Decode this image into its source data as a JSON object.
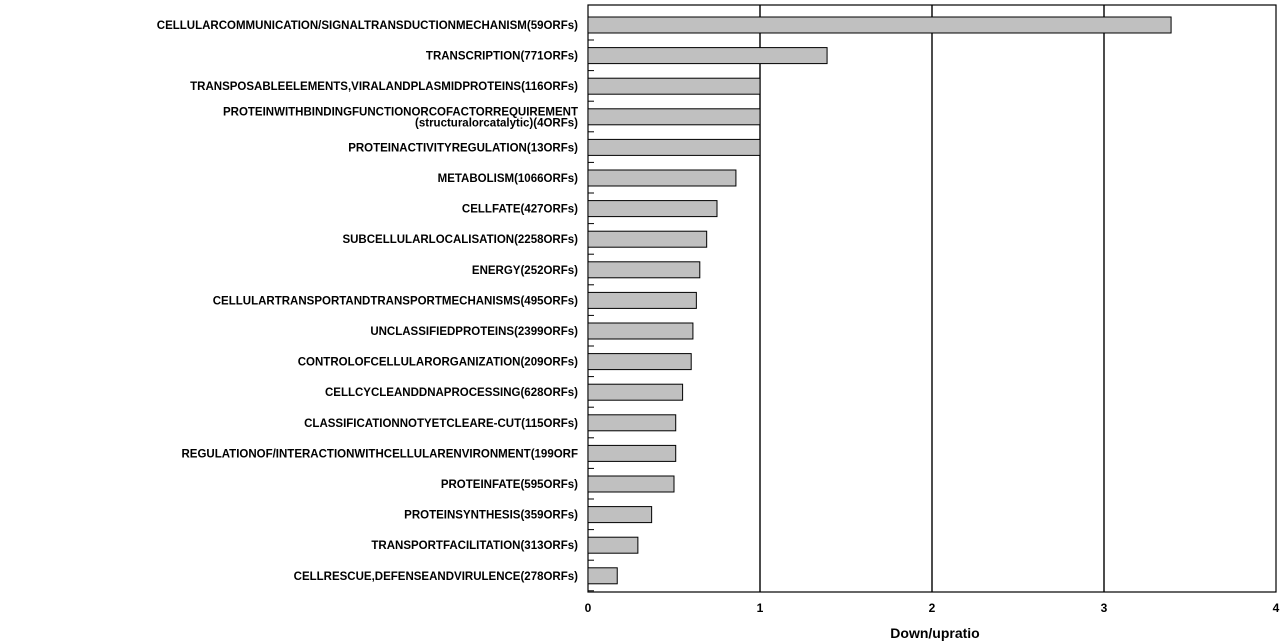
{
  "chart_data": {
    "type": "bar",
    "orientation": "horizontal",
    "title": "",
    "xlabel": "Down/upratio",
    "ylabel": "",
    "xlim": [
      0,
      4
    ],
    "x_ticks": [
      "0",
      "1",
      "2",
      "3",
      "4"
    ],
    "grid": "vertical lines at x = 1, 2, 3",
    "legend": "none",
    "colors": {
      "bar_fill": "#c0c0c0",
      "bar_stroke": "#000000",
      "grid": "#000000"
    },
    "categories": [
      [
        "CELLULARCOMMUNICATION/SIGNALTRANSDUCTIONMECHANISM(59ORFs)"
      ],
      [
        "TRANSCRIPTION(771ORFs)"
      ],
      [
        "TRANSPOSABLEELEMENTS,VIRALANDPLASMIDPROTEINS(116ORFs)"
      ],
      [
        "PROTEINWITHBINDINGFUNCTIONORCOFACTORREQUIREMENT",
        "(structuralorcatalytic)(4ORFs)"
      ],
      [
        "PROTEINACTIVITYREGULATION(13ORFs)"
      ],
      [
        "METABOLISM(1066ORFs)"
      ],
      [
        "CELLFATE(427ORFs)"
      ],
      [
        "SUBCELLULARLOCALISATION(2258ORFs)"
      ],
      [
        "ENERGY(252ORFs)"
      ],
      [
        "CELLULARTRANSPORTANDTRANSPORTMECHANISMS(495ORFs)"
      ],
      [
        "UNCLASSIFIEDPROTEINS(2399ORFs)"
      ],
      [
        "CONTROLOFCELLULARORGANIZATION(209ORFs)"
      ],
      [
        "CELLCYCLEANDDNAPROCESSING(628ORFs)"
      ],
      [
        "CLASSIFICATIONNOTYETCLEARE-CUT(115ORFs)"
      ],
      [
        "REGULATIONOF/INTERACTIONWITHCELLULARENVIRONMENT(199ORF"
      ],
      [
        "PROTEINFATE(595ORFs)"
      ],
      [
        "PROTEINSYNTHESIS(359ORFs)"
      ],
      [
        "TRANSPORTFACILITATION(313ORFs)"
      ],
      [
        "CELLRESCUE,DEFENSEANDVIRULENCE(278ORFs)"
      ]
    ],
    "values": [
      3.39,
      1.39,
      1.0,
      1.0,
      1.0,
      0.86,
      0.75,
      0.69,
      0.65,
      0.63,
      0.61,
      0.6,
      0.55,
      0.51,
      0.51,
      0.5,
      0.37,
      0.29,
      0.17
    ]
  }
}
